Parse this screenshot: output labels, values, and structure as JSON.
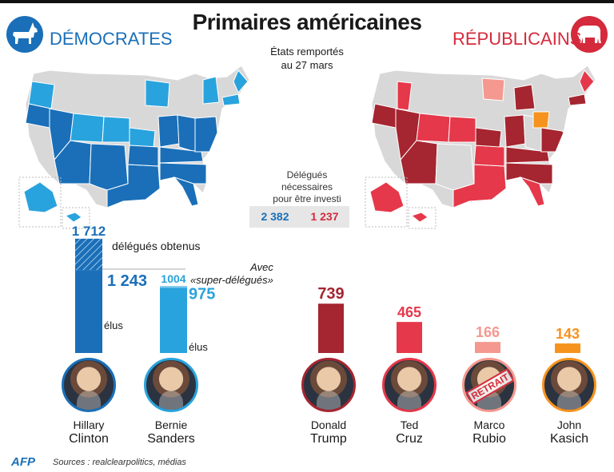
{
  "title": "Primaires américaines",
  "subtitle_line1": "États remportés",
  "subtitle_line2": "au 27 mars",
  "democrats": {
    "label": "DÉMOCRATES",
    "color": "#1a6fb8",
    "icon": "donkey-icon"
  },
  "republicans": {
    "label": "RÉPUBLICAINS",
    "color": "#d42a3b",
    "icon": "elephant-icon"
  },
  "delegates_needed": {
    "line1": "Délégués",
    "line2": "nécessaires",
    "line3": "pour être investi",
    "democrats": "2 382",
    "republicans": "1 237"
  },
  "annotations": {
    "delegates_obtained": "délégués obtenus",
    "with_super_1": "Avec",
    "with_super_2": "«super-délégués»",
    "elected": "élus"
  },
  "chart_data": {
    "type": "bar",
    "categories": [
      "Hillary Clinton",
      "Bernie Sanders",
      "Donald Trump",
      "Ted Cruz",
      "Marco Rubio",
      "John Kasich"
    ],
    "series": [
      {
        "values": [
          1243,
          975,
          739,
          465,
          166,
          143
        ]
      },
      {
        "values": [
          1712,
          1004,
          null,
          null,
          null,
          null
        ]
      }
    ],
    "value_labels": [
      "1 243",
      "975",
      "739",
      "465",
      "166",
      "143"
    ],
    "super_labels": [
      "1 712",
      "1004"
    ],
    "colors": [
      "#1a6fb8",
      "#29a3dd",
      "#a52530",
      "#e5384a",
      "#f5988f",
      "#f6931e"
    ]
  },
  "candidates": [
    {
      "first": "Hillary",
      "last": "Clinton",
      "ring": "#1a6fb8"
    },
    {
      "first": "Bernie",
      "last": "Sanders",
      "ring": "#29a3dd"
    },
    {
      "first": "Donald",
      "last": "Trump",
      "ring": "#a52530"
    },
    {
      "first": "Ted",
      "last": "Cruz",
      "ring": "#e5384a"
    },
    {
      "first": "Marco",
      "last": "Rubio",
      "ring": "#f5988f",
      "stamp": "RETRAIT"
    },
    {
      "first": "John",
      "last": "Kasich",
      "ring": "#f6931e"
    }
  ],
  "source": "Sources : realclearpolitics, médias",
  "logo": "AFP"
}
